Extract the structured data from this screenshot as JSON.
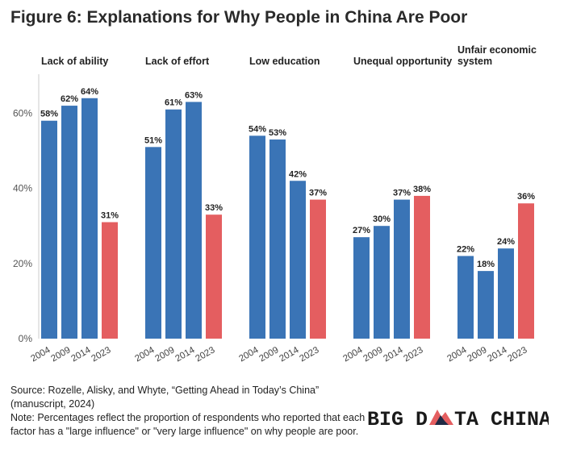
{
  "title": "Figure 6: Explanations for Why People in China Are Poor",
  "colors": {
    "past": "#3a74b6",
    "latest": "#e45e60"
  },
  "chart_data": {
    "type": "bar",
    "title": "Figure 6: Explanations for Why People in China Are Poor",
    "categories": [
      "2004",
      "2009",
      "2014",
      "2023"
    ],
    "ylim": [
      0,
      70
    ],
    "y_ticks": [
      "0%",
      "20%",
      "40%",
      "60%"
    ],
    "grid": false,
    "panels": [
      {
        "name": "Lack of ability",
        "values": [
          58,
          62,
          64,
          31
        ],
        "labels": [
          "58%",
          "62%",
          "64%",
          "31%"
        ]
      },
      {
        "name": "Lack of effort",
        "values": [
          51,
          61,
          63,
          33
        ],
        "labels": [
          "51%",
          "61%",
          "63%",
          "33%"
        ]
      },
      {
        "name": "Low education",
        "values": [
          54,
          53,
          42,
          37
        ],
        "labels": [
          "54%",
          "53%",
          "42%",
          "37%"
        ]
      },
      {
        "name": "Unequal opportunity",
        "values": [
          27,
          30,
          37,
          38
        ],
        "labels": [
          "27%",
          "30%",
          "37%",
          "38%"
        ]
      },
      {
        "name": "Unfair economic system",
        "values": [
          22,
          18,
          24,
          36
        ],
        "labels": [
          "22%",
          "18%",
          "24%",
          "36%"
        ]
      }
    ]
  },
  "footnote": {
    "source": "Source: Rozelle, Alisky, and Whyte, “Getting Ahead in Today’s China” (manuscript, 2024)",
    "note": "Note: Percentages reflect the proportion of respondents who reported that each factor has a \"large influence\" or \"very large influence\" on why people are poor."
  },
  "logo": {
    "part1": "BIG D",
    "part2": "TA CHINA"
  }
}
